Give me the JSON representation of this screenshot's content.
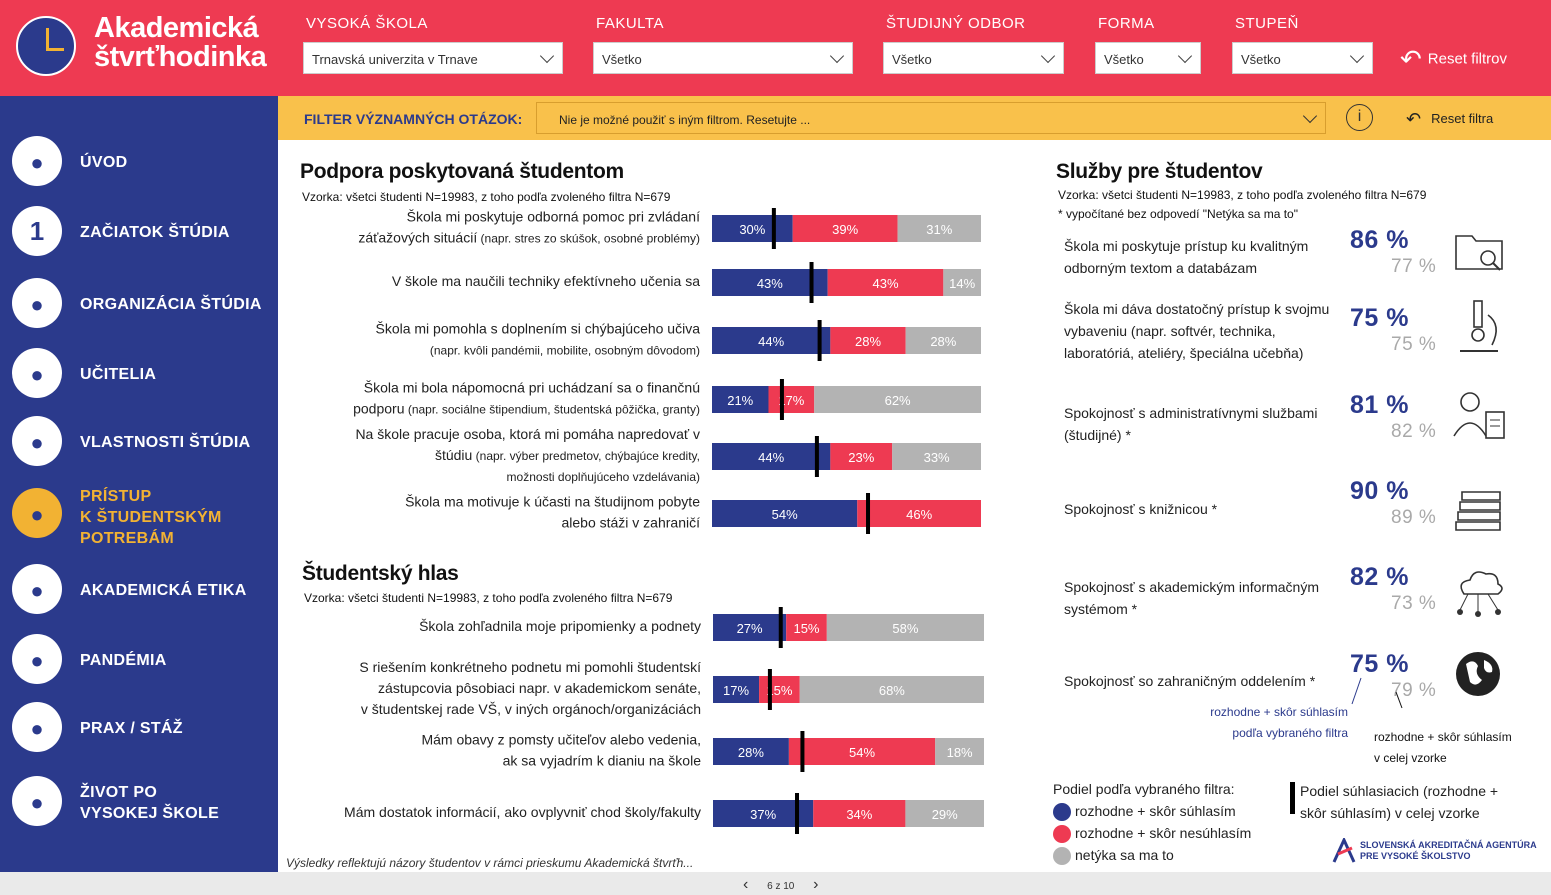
{
  "header": {
    "logo_line1": "Akademická",
    "logo_line2": "štvrťhodinka",
    "filters": [
      {
        "label": "VYSOKÁ ŠKOLA",
        "value": "Trnavská univerzita v Trnave"
      },
      {
        "label": "FAKULTA",
        "value": "Všetko"
      },
      {
        "label": "ŠTUDIJNÝ ODBOR",
        "value": "Všetko"
      },
      {
        "label": "FORMA",
        "value": "Všetko"
      },
      {
        "label": "STUPEŇ",
        "value": "Všetko"
      }
    ],
    "reset_label": "Reset filtrov"
  },
  "sidebar": {
    "items": [
      {
        "label": "ÚVOD",
        "icon": "home-icon"
      },
      {
        "label": "ZAČIATOK ŠTÚDIA",
        "icon": "number-one-icon",
        "glyph": "1"
      },
      {
        "label": "ORGANIZÁCIA ŠTÚDIA",
        "icon": "network-icon"
      },
      {
        "label": "UČITELIA",
        "icon": "teacher-icon"
      },
      {
        "label": "VLASTNOSTI ŠTÚDIA",
        "icon": "books-icon"
      },
      {
        "label_lines": [
          "PRÍSTUP",
          "K ŠTUDENTSKÝM",
          "POTREBÁM"
        ],
        "icon": "student-needs-icon",
        "active": true
      },
      {
        "label": "AKADEMICKÁ ETIKA",
        "icon": "handshake-icon"
      },
      {
        "label": "PANDÉMIA",
        "icon": "virus-icon"
      },
      {
        "label": "PRAX / STÁŽ",
        "icon": "laptop-worker-icon"
      },
      {
        "label_lines": [
          "ŽIVOT PO",
          "VYSOKEJ ŠKOLE"
        ],
        "icon": "graduate-icon"
      }
    ]
  },
  "important_filter": {
    "label": "FILTER VÝZNAMNÝCH OTÁZOK:",
    "value": "Nie je možné použiť s iným filtrom. Resetujte ...",
    "info_glyph": "i",
    "reset_label": "Reset filtra"
  },
  "colors": {
    "agree": "#2b3a8c",
    "disagree": "#ee3a52",
    "na": "#b3b3b3",
    "accent_yellow": "#f9c14b"
  },
  "support": {
    "title": "Podpora poskytovaná študentom",
    "sample": "Vzorka: všetci študenti N=19983, z toho podľa zvoleného filtra N=679"
  },
  "voice": {
    "title": "Študentský hlas",
    "sample": "Vzorka: všetci študenti N=19983, z toho podľa zvoleného filtra N=679"
  },
  "chart_data": [
    {
      "type": "bar",
      "stacked": true,
      "orientation": "horizontal",
      "categories": [
        {
          "lines": [
            {
              "t": "Škola mi poskytuje odborná pomoc pri zvládaní"
            },
            {
              "t": "záťažových situácií",
              "s": " (napr. stres zo skúšok, osobné problémy)"
            }
          ]
        },
        {
          "lines": [
            {
              "t": "V škole ma naučili techniky efektívneho učenia sa"
            }
          ]
        },
        {
          "lines": [
            {
              "t": "Škola mi pomohla s doplnením si chýbajúceho učiva"
            },
            {
              "s": "(napr. kvôli pandémii, mobilite, osobným  dôvodom)"
            }
          ]
        },
        {
          "lines": [
            {
              "t": "Škola mi bola nápomocná pri uchádzaní sa o finančnú"
            },
            {
              "t": "podporu",
              "s": " (napr. sociálne štipendium, študentská pôžička, granty)"
            }
          ]
        },
        {
          "lines": [
            {
              "t": "Na škole pracuje osoba, ktorá mi pomáha napredovať v"
            },
            {
              "t": "štúdiu",
              "s": " (napr. výber predmetov, chýbajúce kredity,"
            },
            {
              "s": "možnosti doplňujúceho vzdelávania)"
            }
          ]
        },
        {
          "lines": [
            {
              "t": "Škola ma motivuje k účasti na študijnom pobyte"
            },
            {
              "t": "alebo stáži v zahraničí"
            }
          ]
        }
      ],
      "series": [
        {
          "name": "rozhodne + skôr súhlasím",
          "values": [
            30,
            43,
            44,
            21,
            44,
            54
          ]
        },
        {
          "name": "rozhodne + skôr nesúhlasím",
          "values": [
            39,
            43,
            28,
            17,
            23,
            46
          ]
        },
        {
          "name": "netýka sa ma to",
          "values": [
            31,
            14,
            28,
            62,
            33,
            0
          ]
        }
      ],
      "overall_agree_marker": [
        23,
        37,
        40,
        26,
        39,
        58
      ]
    },
    {
      "type": "bar",
      "stacked": true,
      "orientation": "horizontal",
      "categories": [
        {
          "lines": [
            {
              "t": "Škola zohľadnila moje pripomienky a podnety"
            }
          ]
        },
        {
          "lines": [
            {
              "t": "S riešením konkrétneho podnetu mi pomohli študentskí"
            },
            {
              "t": "zástupcovia pôsobiaci napr. v akademickom senáte,"
            },
            {
              "t": "v študentskej rade VŠ, v iných orgánoch/organizáciách"
            }
          ]
        },
        {
          "lines": [
            {
              "t": "Mám obavy z pomsty učiteľov alebo vedenia,"
            },
            {
              "t": "ak sa vyjadrím k dianiu na škole"
            }
          ]
        },
        {
          "lines": [
            {
              "t": "Mám dostatok informácií, ako ovplyvniť chod školy/fakulty"
            }
          ]
        }
      ],
      "series": [
        {
          "name": "rozhodne + skôr súhlasím",
          "values": [
            27,
            17,
            28,
            37
          ]
        },
        {
          "name": "rozhodne + skôr nesúhlasím",
          "values": [
            15,
            15,
            54,
            34
          ]
        },
        {
          "name": "netýka sa ma to",
          "values": [
            58,
            68,
            18,
            29
          ]
        }
      ],
      "overall_agree_marker": [
        25,
        21,
        33,
        31
      ]
    }
  ],
  "services": {
    "title": "Služby pre študentov",
    "sample": "Vzorka: všetci študenti N=19983, z toho podľa zvoleného filtra N=679",
    "note": "* vypočítané bez odpovedí \"Netýka sa ma to\"",
    "items": [
      {
        "label": "Škola mi poskytuje prístup ku kvalitným odborným textom a databázam",
        "selected": "86 %",
        "overall": "77 %",
        "icon": "folder-search-icon"
      },
      {
        "label": "Škola mi dáva dostatočný prístup k svojmu vybaveniu (napr. softvér, technika, laboratóriá, ateliéry, špeciálna učebňa)",
        "selected": "75 %",
        "overall": "75 %",
        "icon": "microscope-icon"
      },
      {
        "label": "Spokojnosť s administratívnymi službami (študijné) *",
        "selected": "81 %",
        "overall": "82 %",
        "icon": "clerk-icon"
      },
      {
        "label": "Spokojnosť s knižnicou *",
        "selected": "90 %",
        "overall": "89 %",
        "icon": "book-stack-icon"
      },
      {
        "label": "Spokojnosť s akademickým informačným systémom *",
        "selected": "82 %",
        "overall": "73 %",
        "icon": "cloud-network-icon"
      },
      {
        "label": "Spokojnosť so zahraničným oddelením *",
        "selected": "75 %",
        "overall": "79 %",
        "icon": "globe-icon"
      }
    ],
    "annotation_selected": [
      "rozhodne + skôr súhlasím",
      "podľa vybraného filtra"
    ],
    "annotation_overall": [
      "rozhodne + skôr súhlasím",
      "v celej vzorke"
    ]
  },
  "legend": {
    "title": "Podiel podľa vybraného filtra:",
    "items": [
      "rozhodne + skôr súhlasím",
      "rozhodne + skôr nesúhlasím",
      "netýka sa ma to"
    ],
    "marker_text": [
      "Podiel súhlasiacich (rozhodne +",
      "skôr súhlasím) v celej vzorke"
    ]
  },
  "agency": {
    "line1": "SLOVENSKÁ AKREDITAČNÁ AGENTÚRA",
    "line2": "PRE VYSOKÉ ŠKOLSTVO"
  },
  "footnote": "Výsledky reflektujú názory študentov v rámci prieskumu Akademická štvrťh...",
  "pager": {
    "label": "6 z 10",
    "prev": "‹",
    "next": "›"
  }
}
